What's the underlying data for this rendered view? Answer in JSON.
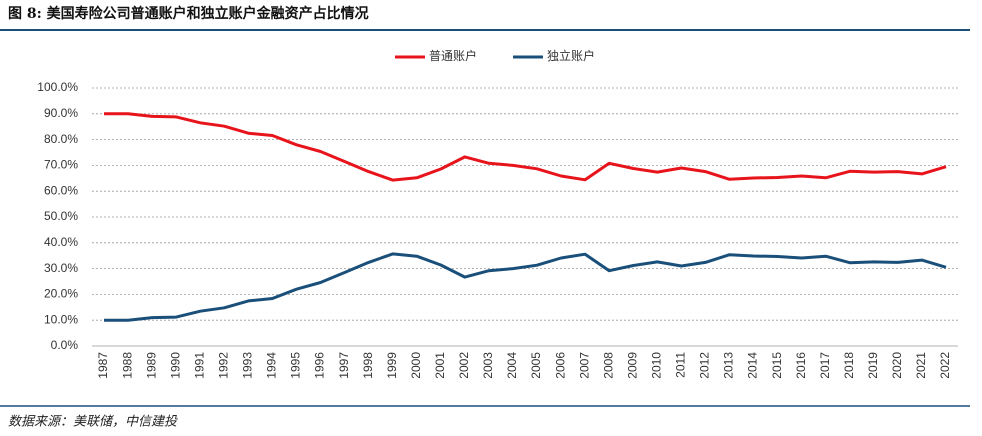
{
  "chart_data": {
    "type": "line",
    "title": "图 8: 美国寿险公司普通账户和独立账户金融资产占比情况",
    "source": "数据来源：美联储，中信建投",
    "categories": [
      "1987",
      "1988",
      "1989",
      "1990",
      "1991",
      "1992",
      "1993",
      "1994",
      "1995",
      "1996",
      "1997",
      "1998",
      "1999",
      "2000",
      "2001",
      "2002",
      "2003",
      "2004",
      "2005",
      "2006",
      "2007",
      "2008",
      "2009",
      "2010",
      "2011",
      "2012",
      "2013",
      "2014",
      "2015",
      "2016",
      "2017",
      "2018",
      "2019",
      "2020",
      "2021",
      "2022"
    ],
    "series": [
      {
        "name": "普通账户",
        "color": "#e8141b",
        "values": [
          90,
          90,
          89,
          88.8,
          86.5,
          85.2,
          82.5,
          81.6,
          78,
          75.4,
          71.5,
          67.6,
          64.3,
          65.2,
          68.6,
          73.3,
          70.8,
          70,
          68.7,
          65.9,
          64.4,
          70.8,
          68.8,
          67.4,
          69,
          67.6,
          64.6,
          65.1,
          65.3,
          65.9,
          65.2,
          67.7,
          67.4,
          67.6,
          66.7,
          69.5
        ]
      },
      {
        "name": "独立账户",
        "color": "#1a4f7a",
        "values": [
          10,
          10,
          11,
          11.2,
          13.5,
          14.8,
          17.5,
          18.4,
          22,
          24.6,
          28.5,
          32.4,
          35.7,
          34.8,
          31.4,
          26.7,
          29.2,
          30,
          31.3,
          34.1,
          35.6,
          29.2,
          31.2,
          32.6,
          31,
          32.4,
          35.4,
          34.9,
          34.7,
          34.1,
          34.8,
          32.3,
          32.6,
          32.4,
          33.3,
          30.5
        ]
      }
    ],
    "ylim": [
      0,
      100
    ],
    "yticks": [
      {
        "value": 0,
        "label": "0.0%"
      },
      {
        "value": 10,
        "label": "10.0%"
      },
      {
        "value": 20,
        "label": "20.0%"
      },
      {
        "value": 30,
        "label": "30.0%"
      },
      {
        "value": 40,
        "label": "40.0%"
      },
      {
        "value": 50,
        "label": "50.0%"
      },
      {
        "value": 60,
        "label": "60.0%"
      },
      {
        "value": 70,
        "label": "70.0%"
      },
      {
        "value": 80,
        "label": "80.0%"
      },
      {
        "value": 90,
        "label": "90.0%"
      },
      {
        "value": 100,
        "label": "100.0%"
      }
    ],
    "grid": true,
    "legend": "top"
  }
}
